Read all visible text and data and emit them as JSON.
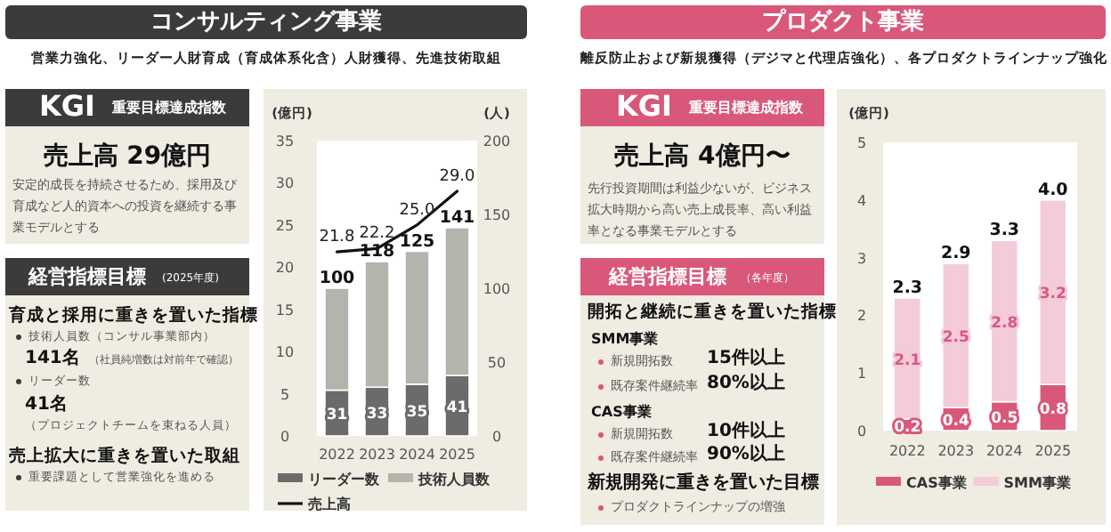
{
  "chart_data": [
    {
      "type": "other",
      "title": "コンサルティング事業",
      "subtitle": "営業力強化、リーダー人財育成（育成体系化含）人財獲得、先進技術取組",
      "annotations": [
        "KGI",
        "重要目標達成指数",
        "売上高 29億円",
        "安定的成長を持続させるため、採用及び育成など人的資本への投資を継続する事業モデルとする",
        "経営指標目標",
        "(2025年度)",
        "育成と採用に重きを置いた指標",
        "技術人員数（コンサル事業部内）",
        "141名",
        "（社員純増数は対前年で確認）",
        "リーダー数",
        "41名",
        "（プロジェクトチームを束ねる人員）",
        "売上拡大に重きを置いた取組",
        "重要課題として営業強化を進める"
      ]
    },
    {
      "type": "bar",
      "stacked": true,
      "categories": [
        "2022",
        "2023",
        "2024",
        "2025"
      ],
      "ylabel": "(億円)",
      "y2label": "(人)",
      "ylim": [
        0,
        35
      ],
      "yticks": [
        0,
        5,
        10,
        15,
        20,
        25,
        30,
        35
      ],
      "y2lim": [
        0,
        200
      ],
      "y2ticks": [
        0,
        50,
        100,
        150,
        200
      ],
      "legend": "bottom",
      "totals": [
        "100",
        "118",
        "125",
        "141"
      ],
      "series": [
        {
          "name": "リーダー数",
          "color": "#6b6b6b",
          "axis": "y2",
          "values": [
            31,
            33,
            35,
            41
          ],
          "value_labels": [
            "31",
            "33",
            "35",
            "41"
          ]
        },
        {
          "name": "技術人員数",
          "color": "#b4b4ac",
          "axis": "y2",
          "values": [
            69,
            85,
            90,
            100
          ]
        },
        {
          "name": "売上高",
          "type": "line",
          "color": "#111111",
          "values": [
            21.8,
            22.2,
            25.0,
            29.0
          ],
          "value_labels": [
            "21.8",
            "22.2",
            "25.0",
            "29.0"
          ]
        }
      ]
    },
    {
      "type": "other",
      "title": "プロダクト事業",
      "subtitle": "離反防止および新規獲得（デジマと代理店強化）、各プロダクトラインナップ強化",
      "annotations": [
        "KGI",
        "重要目標達成指数",
        "売上高 4億円〜",
        "先行投資期間は利益少ないが、ビジネス拡大時期から高い売上成長率、高い利益率となる事業モデルとする",
        "経営指標目標",
        "（各年度）",
        "開拓と継続に重きを置いた指標",
        "SMM事業",
        "新規開拓数",
        "15件以上",
        "既存案件継続率",
        "80%以上",
        "CAS事業",
        "新規開拓数",
        "10件以上",
        "既存案件継続率",
        "90%以上",
        "新規開発に重きを置いた目標",
        "プロダクトラインナップの増強"
      ]
    },
    {
      "type": "bar",
      "stacked": true,
      "categories": [
        "2022",
        "2023",
        "2024",
        "2025"
      ],
      "ylabel": "(億円)",
      "ylim": [
        0,
        5
      ],
      "yticks": [
        0,
        1,
        2,
        3,
        4,
        5
      ],
      "legend": "bottom",
      "totals": [
        "2.3",
        "2.9",
        "3.3",
        "4.0"
      ],
      "series": [
        {
          "name": "CAS事業",
          "color": "#d9587a",
          "values": [
            0.2,
            0.4,
            0.5,
            0.8
          ],
          "value_labels": [
            "0.2",
            "0.4",
            "0.5",
            "0.8"
          ]
        },
        {
          "name": "SMM事業",
          "color": "#f4cbd8",
          "values": [
            2.1,
            2.5,
            2.8,
            3.2
          ],
          "value_labels": [
            "2.1",
            "2.5",
            "2.8",
            "3.2"
          ]
        }
      ]
    }
  ]
}
